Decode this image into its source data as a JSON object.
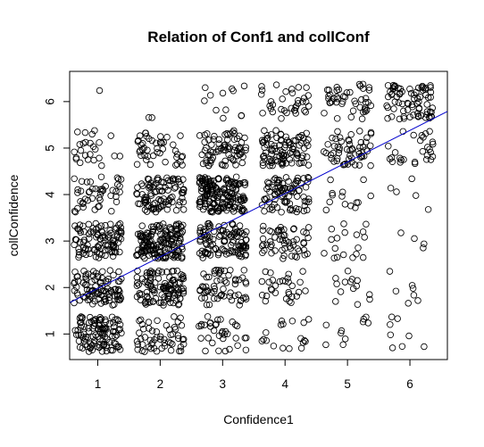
{
  "chart_data": {
    "type": "scatter",
    "title": "Relation of Conf1 and collConf",
    "xlabel": "Confidence1",
    "ylabel": "collConfidence",
    "xlim": [
      0.55,
      6.6
    ],
    "ylim": [
      0.45,
      6.65
    ],
    "x_ticks": [
      1,
      2,
      3,
      4,
      5,
      6
    ],
    "y_ticks": [
      1,
      2,
      3,
      4,
      5,
      6
    ],
    "jitter_note": "points are jittered around integer grid values",
    "cell_counts": {
      "x_values": [
        1,
        2,
        3,
        4,
        5,
        6
      ],
      "y_values": [
        1,
        2,
        3,
        4,
        5,
        6
      ],
      "counts": [
        [
          110,
          55,
          35,
          18,
          10,
          8
        ],
        [
          95,
          110,
          60,
          30,
          14,
          7
        ],
        [
          100,
          160,
          110,
          55,
          18,
          4
        ],
        [
          45,
          95,
          170,
          85,
          14,
          5
        ],
        [
          25,
          45,
          75,
          95,
          55,
          28
        ],
        [
          1,
          2,
          12,
          35,
          45,
          75
        ]
      ]
    },
    "fit_line": {
      "intercept": 1.3,
      "slope": 0.68,
      "color": "#0000cc"
    },
    "point_color": "#000000",
    "grid": false
  }
}
